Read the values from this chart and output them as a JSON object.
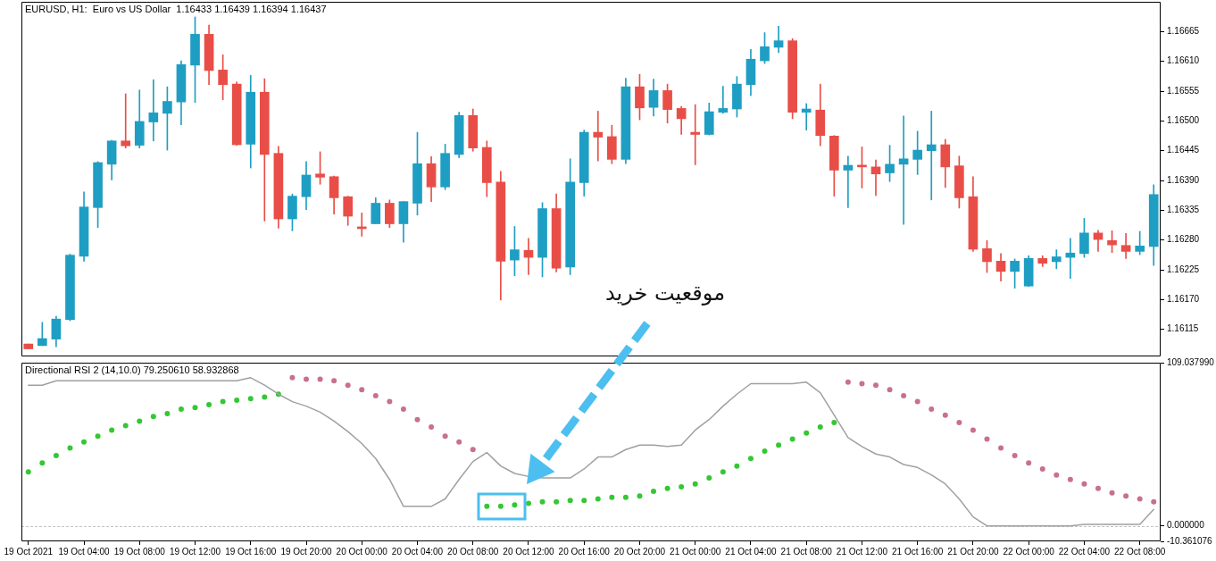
{
  "chart_data": [
    {
      "type": "candlestick",
      "title": "EURUSD, H1:  Euro vs US Dollar  1.16433 1.16439 1.16394 1.16437",
      "categories": [
        null,
        null,
        null,
        null,
        null,
        null,
        null,
        null,
        null,
        null,
        null,
        null,
        null,
        null,
        null,
        null,
        null,
        null,
        null,
        null,
        null,
        null,
        null,
        null,
        null,
        null,
        null,
        null,
        null,
        null,
        null,
        null,
        null,
        null,
        null,
        null,
        null,
        null,
        null,
        null,
        null,
        null,
        null,
        null,
        null,
        null,
        null,
        null,
        null,
        null,
        null,
        null,
        null,
        null,
        null,
        null,
        null,
        null,
        null,
        null,
        null,
        null,
        null,
        null,
        null,
        null,
        null,
        null,
        null,
        null,
        null,
        null,
        null,
        null,
        null,
        null,
        null,
        null,
        null,
        null,
        null,
        null
      ],
      "ohlc": [
        [
          1.16088,
          1.16088,
          1.16079,
          1.16079
        ],
        [
          1.16085,
          1.16128,
          1.16085,
          1.16098
        ],
        [
          1.16097,
          1.16139,
          1.16083,
          1.16134
        ],
        [
          1.16133,
          1.16254,
          1.16131,
          1.16252
        ],
        [
          1.1625,
          1.16369,
          1.16241,
          1.16341
        ],
        [
          1.1634,
          1.16425,
          1.16303,
          1.16423
        ],
        [
          1.1642,
          1.16464,
          1.16391,
          1.16463
        ],
        [
          1.16463,
          1.1655,
          1.1645,
          1.16454
        ],
        [
          1.16455,
          1.16557,
          1.1645,
          1.16499
        ],
        [
          1.16498,
          1.16576,
          1.16463,
          1.16515
        ],
        [
          1.16514,
          1.16563,
          1.16446,
          1.16536
        ],
        [
          1.16535,
          1.16611,
          1.16493,
          1.16604
        ],
        [
          1.16603,
          1.16692,
          1.16534,
          1.1666
        ],
        [
          1.1666,
          1.16677,
          1.16567,
          1.16593
        ],
        [
          1.16594,
          1.16622,
          1.16539,
          1.16567
        ],
        [
          1.16568,
          1.16572,
          1.16455,
          1.16456
        ],
        [
          1.16457,
          1.16584,
          1.16413,
          1.16553
        ],
        [
          1.16553,
          1.16578,
          1.16315,
          1.16438
        ],
        [
          1.1644,
          1.16453,
          1.16302,
          1.16319
        ],
        [
          1.16319,
          1.16365,
          1.16297,
          1.16361
        ],
        [
          1.1636,
          1.16425,
          1.16336,
          1.164
        ],
        [
          1.16402,
          1.16443,
          1.16383,
          1.16396
        ],
        [
          1.16397,
          1.16398,
          1.16328,
          1.16358
        ],
        [
          1.1636,
          1.16361,
          1.16307,
          1.16324
        ],
        [
          1.16304,
          1.1633,
          1.16287,
          1.16301
        ],
        [
          1.1631,
          1.16358,
          1.1631,
          1.16348
        ],
        [
          1.16348,
          1.16354,
          1.16303,
          1.1631
        ],
        [
          1.1631,
          1.16351,
          1.16276,
          1.16351
        ],
        [
          1.16348,
          1.16479,
          1.16326,
          1.16421
        ],
        [
          1.16421,
          1.16434,
          1.16351,
          1.16378
        ],
        [
          1.16378,
          1.16457,
          1.16373,
          1.1644
        ],
        [
          1.16438,
          1.16516,
          1.16432,
          1.1651
        ],
        [
          1.1651,
          1.16522,
          1.16444,
          1.1645
        ],
        [
          1.16451,
          1.16463,
          1.1636,
          1.16386
        ],
        [
          1.16387,
          1.16407,
          1.16169,
          1.16241
        ],
        [
          1.16243,
          1.16305,
          1.16214,
          1.16262
        ],
        [
          1.16261,
          1.16283,
          1.16216,
          1.16248
        ],
        [
          1.16248,
          1.16349,
          1.16212,
          1.16338
        ],
        [
          1.16338,
          1.16365,
          1.16221,
          1.16228
        ],
        [
          1.1623,
          1.1643,
          1.16216,
          1.16387
        ],
        [
          1.16386,
          1.16483,
          1.16361,
          1.16479
        ],
        [
          1.16479,
          1.16518,
          1.16426,
          1.1647
        ],
        [
          1.16471,
          1.16492,
          1.16421,
          1.16429
        ],
        [
          1.16429,
          1.16579,
          1.16421,
          1.16563
        ],
        [
          1.16563,
          1.16586,
          1.16502,
          1.16524
        ],
        [
          1.16525,
          1.16577,
          1.16509,
          1.16556
        ],
        [
          1.16556,
          1.16568,
          1.16496,
          1.16521
        ],
        [
          1.16523,
          1.16527,
          1.16475,
          1.16504
        ],
        [
          1.16479,
          1.1653,
          1.16419,
          1.16475
        ],
        [
          1.16475,
          1.16533,
          1.16474,
          1.16517
        ],
        [
          1.16516,
          1.16564,
          1.16514,
          1.16523
        ],
        [
          1.16522,
          1.16582,
          1.16507,
          1.16568
        ],
        [
          1.16567,
          1.16632,
          1.16547,
          1.16614
        ],
        [
          1.16611,
          1.16663,
          1.16606,
          1.16637
        ],
        [
          1.16636,
          1.16675,
          1.16626,
          1.16648
        ],
        [
          1.16648,
          1.16652,
          1.16504,
          1.16516
        ],
        [
          1.16516,
          1.16532,
          1.16483,
          1.16522
        ],
        [
          1.1652,
          1.16568,
          1.16454,
          1.16473
        ],
        [
          1.16472,
          1.16473,
          1.16361,
          1.16409
        ],
        [
          1.16409,
          1.16435,
          1.1634,
          1.16418
        ],
        [
          1.16418,
          1.16452,
          1.16376,
          1.16415
        ],
        [
          1.16415,
          1.16428,
          1.16362,
          1.16402
        ],
        [
          1.16404,
          1.16455,
          1.16388,
          1.1642
        ],
        [
          1.1642,
          1.16509,
          1.16309,
          1.1643
        ],
        [
          1.16429,
          1.16481,
          1.16401,
          1.16446
        ],
        [
          1.16445,
          1.16518,
          1.16354,
          1.16456
        ],
        [
          1.16456,
          1.16466,
          1.16377,
          1.16415
        ],
        [
          1.16417,
          1.16435,
          1.16339,
          1.16358
        ],
        [
          1.1636,
          1.16397,
          1.16259,
          1.16263
        ],
        [
          1.16264,
          1.16279,
          1.1622,
          1.1624
        ],
        [
          1.16241,
          1.16255,
          1.16204,
          1.16222
        ],
        [
          1.16222,
          1.16245,
          1.16191,
          1.16241
        ],
        [
          1.16195,
          1.16251,
          1.16194,
          1.16246
        ],
        [
          1.16246,
          1.16251,
          1.16231,
          1.16237
        ],
        [
          1.1624,
          1.16262,
          1.16227,
          1.16249
        ],
        [
          1.16248,
          1.16283,
          1.16209,
          1.16256
        ],
        [
          1.16255,
          1.1632,
          1.16248,
          1.16293
        ],
        [
          1.16293,
          1.16298,
          1.16259,
          1.16281
        ],
        [
          1.16279,
          1.16297,
          1.16257,
          1.16271
        ],
        [
          1.1627,
          1.16292,
          1.16246,
          1.16259
        ],
        [
          1.16259,
          1.16296,
          1.16253,
          1.16269
        ],
        [
          1.16268,
          1.16382,
          1.16233,
          1.16364
        ]
      ],
      "colors": [
        "#e84e47",
        "#1f9ec3",
        "#1f9ec3",
        "#1f9ec3",
        "#1f9ec3",
        "#1f9ec3",
        "#1f9ec3",
        "#e84e47",
        "#1f9ec3",
        "#1f9ec3",
        "#1f9ec3",
        "#1f9ec3",
        "#1f9ec3",
        "#e84e47",
        "#e84e47",
        "#e84e47",
        "#1f9ec3",
        "#e84e47",
        "#e84e47",
        "#1f9ec3",
        "#1f9ec3",
        "#e84e47",
        "#e84e47",
        "#e84e47",
        "#e84e47",
        "#1f9ec3",
        "#e84e47",
        "#1f9ec3",
        "#1f9ec3",
        "#e84e47",
        "#1f9ec3",
        "#1f9ec3",
        "#e84e47",
        "#e84e47",
        "#e84e47",
        "#1f9ec3",
        "#e84e47",
        "#1f9ec3",
        "#e84e47",
        "#1f9ec3",
        "#1f9ec3",
        "#e84e47",
        "#e84e47",
        "#1f9ec3",
        "#e84e47",
        "#1f9ec3",
        "#e84e47",
        "#e84e47",
        "#e84e47",
        "#1f9ec3",
        "#1f9ec3",
        "#1f9ec3",
        "#1f9ec3",
        "#1f9ec3",
        "#1f9ec3",
        "#e84e47",
        "#1f9ec3",
        "#e84e47",
        "#e84e47",
        "#1f9ec3",
        "#e84e47",
        "#e84e47",
        "#1f9ec3",
        "#1f9ec3",
        "#1f9ec3",
        "#1f9ec3",
        "#e84e47",
        "#e84e47",
        "#e84e47",
        "#e84e47",
        "#e84e47",
        "#1f9ec3",
        "#1f9ec3",
        "#e84e47",
        "#1f9ec3",
        "#1f9ec3",
        "#1f9ec3",
        "#e84e47",
        "#e84e47",
        "#e84e47",
        "#1f9ec3",
        "#1f9ec3"
      ],
      "ylim": [
        1.16065,
        1.1672
      ],
      "yticks": [
        1.16115,
        {
          "value": 1.1617,
          "label": "1.16170"
        },
        1.16225,
        {
          "value": 1.1628,
          "label": "1.16280"
        },
        1.16335,
        {
          "value": 1.1639,
          "label": "1.16390"
        },
        1.16445,
        {
          "value": 1.165,
          "label": "1.16500"
        },
        1.16555,
        {
          "value": 1.1661,
          "label": "1.16610"
        },
        1.16665
      ],
      "tick_labels": "y",
      "annotations": [
        "موقعیت خرید"
      ]
    },
    {
      "type": "line",
      "title": "Directional RSI 2 (14,10.0) 79.250610 58.932868",
      "categories": [
        "19 Oct 2021",
        null,
        null,
        null,
        "19 Oct 04:00",
        null,
        null,
        null,
        "19 Oct 08:00",
        null,
        null,
        null,
        "19 Oct 12:00",
        null,
        null,
        null,
        "19 Oct 16:00",
        null,
        null,
        null,
        "19 Oct 20:00",
        null,
        null,
        null,
        "20 Oct 00:00",
        null,
        null,
        null,
        "20 Oct 04:00",
        null,
        null,
        null,
        "20 Oct 08:00",
        null,
        null,
        null,
        "20 Oct 12:00",
        null,
        null,
        null,
        "20 Oct 16:00",
        null,
        null,
        null,
        "20 Oct 20:00",
        null,
        null,
        null,
        "21 Oct 00:00",
        null,
        null,
        null,
        "21 Oct 04:00",
        null,
        null,
        null,
        "21 Oct 08:00",
        null,
        null,
        null,
        "21 Oct 12:00",
        null,
        null,
        null,
        "21 Oct 16:00",
        null,
        null,
        null,
        "21 Oct 20:00",
        null,
        null,
        null,
        "22 Oct 00:00",
        null,
        null,
        null,
        "22 Oct 04:00",
        null,
        null,
        null,
        "22 Oct 08:00",
        null
      ],
      "series": [
        {
          "type": "line",
          "color": "#a0a0a0",
          "values": [
            94,
            94,
            97,
            97,
            97,
            97,
            97,
            97,
            97,
            97,
            97,
            97,
            97,
            97,
            97,
            97,
            99,
            94,
            88,
            83,
            80,
            76,
            70,
            63,
            55,
            45,
            31,
            13,
            13,
            13,
            18,
            31,
            43,
            49,
            40,
            35,
            33,
            32,
            32,
            32,
            38,
            46,
            46,
            51,
            54,
            54,
            53,
            54,
            64,
            71,
            80,
            88,
            95,
            95,
            95,
            95,
            96,
            89,
            74,
            59,
            53,
            48,
            46,
            41,
            39,
            34,
            28,
            18,
            6,
            0,
            0,
            0,
            0,
            0,
            0,
            0,
            1,
            1,
            1,
            1,
            1,
            11
          ]
        },
        {
          "type": "scatter",
          "color": "#33c833",
          "marker": "circle",
          "values": [
            36,
            42,
            47,
            52,
            56,
            60,
            64,
            67,
            70,
            73,
            75,
            78,
            79,
            81,
            83,
            84,
            85,
            86,
            88,
            null,
            null,
            null,
            null,
            null,
            null,
            null,
            null,
            null,
            null,
            null,
            null,
            null,
            null,
            13,
            13,
            14,
            15,
            16,
            16,
            17,
            17,
            18,
            19,
            19,
            20,
            23,
            25,
            26,
            28,
            32,
            36,
            40,
            45,
            50,
            54,
            58,
            62,
            66,
            69,
            null,
            null,
            null,
            null,
            null,
            null,
            null,
            null,
            null,
            null,
            null,
            null,
            null,
            null,
            null,
            null,
            null,
            null,
            null,
            null,
            null,
            null,
            null
          ]
        },
        {
          "type": "scatter",
          "color": "#c8708c",
          "marker": "circle",
          "values": [
            null,
            null,
            null,
            null,
            null,
            null,
            null,
            null,
            null,
            null,
            null,
            null,
            null,
            null,
            null,
            null,
            null,
            null,
            null,
            99,
            98,
            98,
            97,
            94,
            91,
            87,
            83,
            78,
            71,
            66,
            60,
            56,
            51,
            null,
            null,
            null,
            null,
            null,
            null,
            null,
            null,
            null,
            null,
            null,
            null,
            null,
            null,
            null,
            null,
            null,
            null,
            null,
            null,
            null,
            null,
            null,
            null,
            null,
            null,
            96,
            95,
            94,
            91,
            87,
            83,
            78,
            74,
            69,
            64,
            58,
            52,
            47,
            42,
            38,
            34,
            31,
            28,
            25,
            22,
            20,
            18,
            16
          ]
        }
      ],
      "ylim": [
        -10.361076,
        109.03799
      ],
      "yticks": [
        {
          "value": 109.03799,
          "label": "109.037990"
        },
        {
          "value": 0,
          "label": "0.000000"
        },
        {
          "value": -10.361076,
          "label": "-10.361076"
        }
      ],
      "ref_lines": [
        {
          "axis": "y",
          "value": 0,
          "color": "#c4c4c4",
          "line_style": "dashed"
        }
      ]
    }
  ]
}
